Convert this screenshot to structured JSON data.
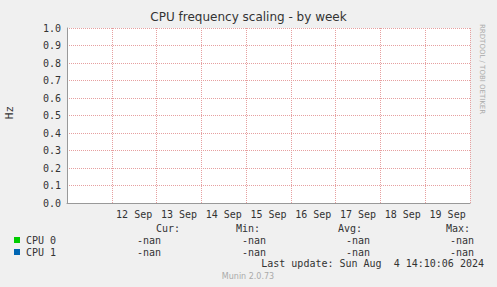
{
  "chart_data": {
    "type": "line",
    "title": "CPU frequency scaling - by week",
    "y_label": "Hz",
    "categories": [
      null,
      "12 Sep",
      "13 Sep",
      "14 Sep",
      "15 Sep",
      "16 Sep",
      "17 Sep",
      "18 Sep",
      "19 Sep"
    ],
    "series": [
      {
        "name": "CPU 0",
        "color": "#00cc00",
        "values": [
          null,
          null,
          null,
          null,
          null,
          null,
          null,
          null,
          null
        ],
        "stats": [
          "-nan",
          "-nan",
          "-nan",
          "-nan"
        ]
      },
      {
        "name": "CPU 1",
        "color": "#0066b3",
        "values": [
          null,
          null,
          null,
          null,
          null,
          null,
          null,
          null,
          null
        ],
        "stats": [
          "-nan",
          "-nan",
          "-nan",
          "-nan"
        ]
      }
    ],
    "legend_columns": [
      "Cur:",
      "Min:",
      "Avg:",
      "Max:"
    ],
    "ylim": [
      0,
      1
    ],
    "yticks": [
      {
        "value": 0,
        "label": "0.0"
      },
      0.1,
      0.2,
      0.3,
      0.4,
      0.5,
      0.6,
      0.7,
      0.8,
      0.9,
      {
        "value": 1,
        "label": "1.0"
      }
    ],
    "grid": true,
    "footer": "Last update: Sun Aug  4 14:10:06 2024",
    "generator": "Munin 2.0.73",
    "side_text": "RRDTOOL / TOBI OETIKER"
  }
}
